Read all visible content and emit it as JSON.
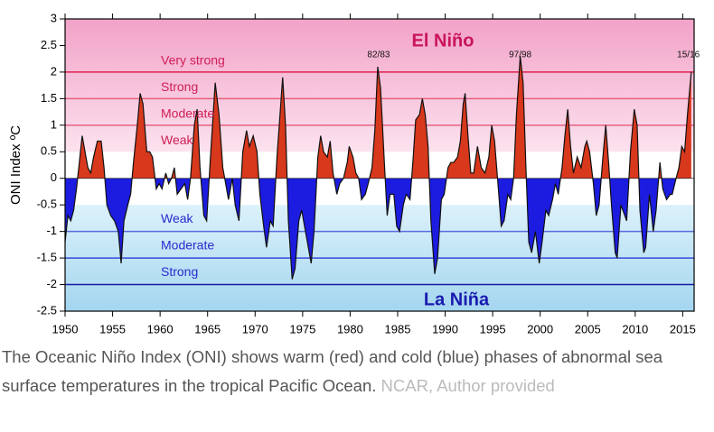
{
  "chart_data": {
    "type": "area",
    "y_label": "ONI Index ºC",
    "regions": {
      "positive": "El Niño",
      "negative": "La Niña"
    },
    "colors": {
      "positive": "#d8381c",
      "negative": "#1c1ce0"
    },
    "xlim": [
      1950,
      2016.2
    ],
    "xticks": [
      1950,
      1955,
      1960,
      1965,
      1970,
      1975,
      1980,
      1985,
      1990,
      1995,
      2000,
      2005,
      2010,
      2015
    ],
    "ylim": [
      -2.5,
      3
    ],
    "yticks": [
      3,
      2.5,
      2,
      1.5,
      1,
      0.5,
      0,
      -0.5,
      -1,
      -1.5,
      -2,
      -2.5
    ],
    "threshold_lines": [
      {
        "value": 2,
        "color": "#e0204a"
      },
      {
        "value": 1.5,
        "color": "#e86080"
      },
      {
        "value": 1,
        "color": "#e86080"
      },
      {
        "value": -1,
        "color": "#5a6ae0"
      },
      {
        "value": -1.5,
        "color": "#3a4ad8"
      },
      {
        "value": -2,
        "color": "#1a1aa8"
      }
    ],
    "threshold_labels": [
      {
        "value": 2,
        "label": "Very strong"
      },
      {
        "value": 1.5,
        "label": "Strong"
      },
      {
        "value": 1,
        "label": "Moderate"
      },
      {
        "value": 0.5,
        "label": "Weak"
      },
      {
        "value": -0.5,
        "label": "Weak"
      },
      {
        "value": -1,
        "label": "Moderate"
      },
      {
        "value": -1.5,
        "label": "Strong"
      }
    ],
    "annotations": [
      {
        "text": "82/83",
        "x": 1983
      },
      {
        "text": "97/98",
        "x": 1997.9
      },
      {
        "text": "15/16",
        "x": 2015.6
      }
    ],
    "x": [
      1950.0,
      1950.3,
      1950.6,
      1950.9,
      1951.2,
      1951.5,
      1951.8,
      1952.1,
      1952.4,
      1952.7,
      1953.0,
      1953.4,
      1953.8,
      1954.1,
      1954.4,
      1954.8,
      1955.2,
      1955.6,
      1955.9,
      1956.2,
      1956.6,
      1956.9,
      1957.2,
      1957.6,
      1957.9,
      1958.2,
      1958.6,
      1958.9,
      1959.2,
      1959.6,
      1959.9,
      1960.2,
      1960.6,
      1960.9,
      1961.2,
      1961.5,
      1961.8,
      1962.2,
      1962.6,
      1962.9,
      1963.2,
      1963.6,
      1963.9,
      1964.2,
      1964.6,
      1964.9,
      1965.3,
      1965.8,
      1966.2,
      1966.6,
      1966.9,
      1967.2,
      1967.6,
      1967.9,
      1968.3,
      1968.7,
      1969.1,
      1969.4,
      1969.8,
      1970.2,
      1970.5,
      1970.9,
      1971.2,
      1971.6,
      1971.9,
      1972.3,
      1972.9,
      1973.2,
      1973.5,
      1973.9,
      1974.2,
      1974.6,
      1974.9,
      1975.3,
      1975.6,
      1975.9,
      1976.2,
      1976.6,
      1976.9,
      1977.2,
      1977.6,
      1977.9,
      1978.2,
      1978.6,
      1978.9,
      1979.3,
      1979.7,
      1979.9,
      1980.3,
      1980.6,
      1980.9,
      1981.2,
      1981.6,
      1981.9,
      1982.3,
      1982.6,
      1982.9,
      1983.2,
      1983.6,
      1983.9,
      1984.2,
      1984.6,
      1984.9,
      1985.2,
      1985.6,
      1985.9,
      1986.3,
      1986.6,
      1986.9,
      1987.3,
      1987.6,
      1987.9,
      1988.2,
      1988.5,
      1988.9,
      1989.2,
      1989.6,
      1989.9,
      1990.3,
      1990.6,
      1990.9,
      1991.3,
      1991.6,
      1991.9,
      1992.1,
      1992.4,
      1992.7,
      1993.0,
      1993.4,
      1993.8,
      1994.2,
      1994.6,
      1994.9,
      1995.2,
      1995.6,
      1995.9,
      1996.2,
      1996.6,
      1996.9,
      1997.2,
      1997.5,
      1997.9,
      1998.2,
      1998.5,
      1998.8,
      1999.1,
      1999.5,
      1999.9,
      2000.2,
      2000.6,
      2000.9,
      2001.3,
      2001.6,
      2001.9,
      2002.3,
      2002.6,
      2002.9,
      2003.2,
      2003.5,
      2003.9,
      2004.3,
      2004.7,
      2004.9,
      2005.2,
      2005.6,
      2005.9,
      2006.2,
      2006.6,
      2006.9,
      2007.2,
      2007.5,
      2007.9,
      2008.1,
      2008.5,
      2008.9,
      2009.1,
      2009.5,
      2009.9,
      2010.2,
      2010.5,
      2010.9,
      2011.1,
      2011.5,
      2011.9,
      2012.2,
      2012.6,
      2012.9,
      2013.3,
      2013.7,
      2013.9,
      2014.3,
      2014.6,
      2014.9,
      2015.2,
      2015.5,
      2015.9
    ],
    "values": [
      -1.2,
      -0.7,
      -0.8,
      -0.6,
      -0.2,
      0.3,
      0.8,
      0.5,
      0.2,
      0.1,
      0.4,
      0.7,
      0.7,
      0.2,
      -0.5,
      -0.7,
      -0.8,
      -1.0,
      -1.6,
      -0.8,
      -0.5,
      -0.3,
      0.3,
      1.0,
      1.6,
      1.4,
      0.5,
      0.5,
      0.4,
      -0.2,
      -0.1,
      -0.2,
      0.1,
      -0.1,
      0,
      0.2,
      -0.3,
      -0.2,
      -0.1,
      -0.4,
      0,
      1.0,
      1.3,
      0.2,
      -0.7,
      -0.8,
      0.4,
      1.8,
      1.2,
      0.2,
      -0.1,
      -0.4,
      0,
      -0.5,
      -0.8,
      0.5,
      0.9,
      0.6,
      0.8,
      0.5,
      -0.3,
      -0.9,
      -1.3,
      -0.8,
      -0.9,
      0.4,
      1.9,
      1.0,
      -0.8,
      -1.9,
      -1.7,
      -0.8,
      -0.6,
      -1.0,
      -1.3,
      -1.6,
      -1.0,
      0.4,
      0.8,
      0.5,
      0.4,
      0.7,
      0.1,
      -0.3,
      -0.1,
      0,
      0.3,
      0.6,
      0.4,
      0.1,
      0,
      -0.4,
      -0.3,
      -0.1,
      0.2,
      0.9,
      2.1,
      1.7,
      0.3,
      -0.7,
      -0.3,
      -0.3,
      -0.9,
      -1.0,
      -0.5,
      -0.3,
      -0.4,
      0.3,
      1.1,
      1.2,
      1.5,
      1.2,
      0.6,
      -0.8,
      -1.8,
      -1.5,
      -0.4,
      -0.3,
      0.2,
      0.3,
      0.3,
      0.4,
      0.7,
      1.4,
      1.6,
      0.8,
      0.1,
      0.1,
      0.6,
      0.2,
      0.1,
      0.4,
      1.0,
      0.7,
      -0.2,
      -0.9,
      -0.8,
      -0.3,
      -0.4,
      0,
      1.2,
      2.3,
      1.8,
      0.2,
      -1.2,
      -1.4,
      -1.0,
      -1.6,
      -1.2,
      -0.6,
      -0.7,
      -0.4,
      -0.1,
      -0.3,
      0.2,
      0.8,
      1.3,
      0.6,
      0.1,
      0.4,
      0.2,
      0.6,
      0.7,
      0.5,
      -0.1,
      -0.7,
      -0.5,
      0.4,
      1.0,
      0.3,
      -0.5,
      -1.4,
      -1.5,
      -0.5,
      -0.7,
      -0.8,
      0.5,
      1.3,
      1.0,
      -0.6,
      -1.4,
      -1.3,
      -0.3,
      -1.0,
      -0.6,
      0.3,
      -0.2,
      -0.4,
      -0.3,
      -0.3,
      0,
      0.2,
      0.6,
      0.5,
      1.2,
      2.0
    ]
  },
  "caption": {
    "text": "The Oceanic Niño Index (ONI) shows warm (red) and cold (blue) phases of abnormal sea surface temperatures in the tropical Pacific Ocean.",
    "source": "NCAR, Author provided"
  }
}
